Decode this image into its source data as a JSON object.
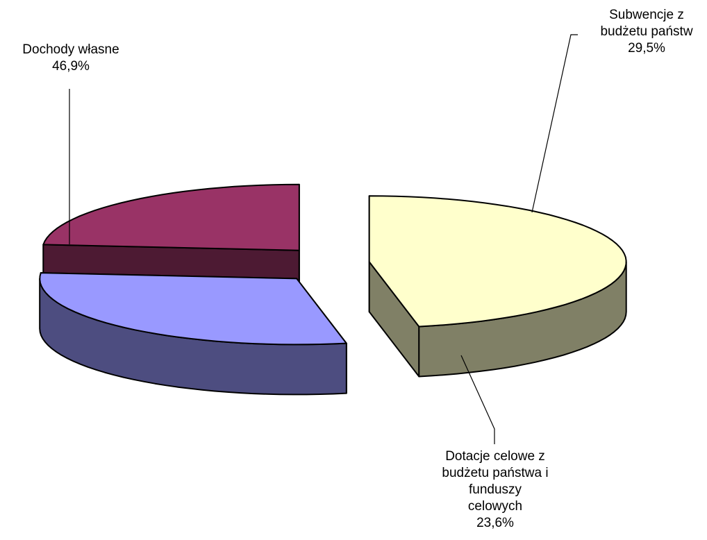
{
  "chart_data": {
    "type": "pie",
    "title": "",
    "slices": [
      {
        "label_lines": [
          "Dochody własne"
        ],
        "value": 46.9,
        "value_label": "46,9%",
        "top_color": "#ffffcc",
        "side_color": "#808066"
      },
      {
        "label_lines": [
          "Subwencje z",
          "budżetu państw"
        ],
        "value": 29.5,
        "value_label": "29,5%",
        "top_color": "#9999ff",
        "side_color": "#4d4d80"
      },
      {
        "label_lines": [
          "Dotacje celowe z",
          "budżetu państwa i",
          "funduszy",
          "celowych"
        ],
        "value": 23.6,
        "value_label": "23,6%",
        "top_color": "#993366",
        "side_color": "#4d1a33"
      }
    ],
    "exploded": true,
    "three_d": true,
    "legend": "none"
  }
}
